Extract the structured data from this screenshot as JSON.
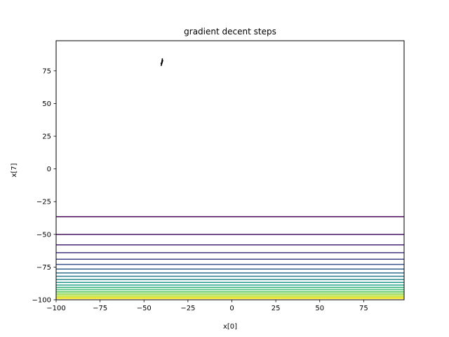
{
  "chart_data": {
    "type": "contour",
    "title": "gradient decent steps",
    "xlabel": "x[0]",
    "ylabel": "x[7]",
    "xlim": [
      -100,
      98
    ],
    "ylim": [
      -100,
      98
    ],
    "xticks": [
      -100,
      -75,
      -50,
      -25,
      0,
      25,
      50,
      75
    ],
    "xtick_labels": [
      "−100",
      "−75",
      "−50",
      "−25",
      "0",
      "25",
      "50",
      "75"
    ],
    "yticks": [
      -100,
      -75,
      -50,
      -25,
      0,
      25,
      50,
      75
    ],
    "ytick_labels": [
      "−100",
      "−75",
      "−50",
      "−25",
      "0",
      "25",
      "50",
      "75"
    ],
    "grid": false,
    "contour_levels_y": [
      -36.5,
      -50,
      -58,
      -64,
      -69,
      -73,
      -76.5,
      -79.5,
      -82,
      -84.5,
      -86.7,
      -88.7,
      -90.5,
      -92,
      -93.5,
      -94.8,
      -96,
      -97.1,
      -98.1,
      -99
    ],
    "colormap": [
      "#440154",
      "#482878",
      "#3e4989",
      "#31688e",
      "#26828e",
      "#1f9e89",
      "#35b779",
      "#6ece58",
      "#b5de2b",
      "#fde725"
    ],
    "path": {
      "color": "#000000",
      "points": [
        {
          "x": -39.5,
          "y": 84.5
        },
        {
          "x": -40.2,
          "y": 79
        },
        {
          "x": -39.3,
          "y": 83
        },
        {
          "x": -40.3,
          "y": 80.5
        },
        {
          "x": -39.6,
          "y": 82
        },
        {
          "x": -40.0,
          "y": 81
        },
        {
          "x": -39.8,
          "y": 81.5
        }
      ]
    }
  }
}
